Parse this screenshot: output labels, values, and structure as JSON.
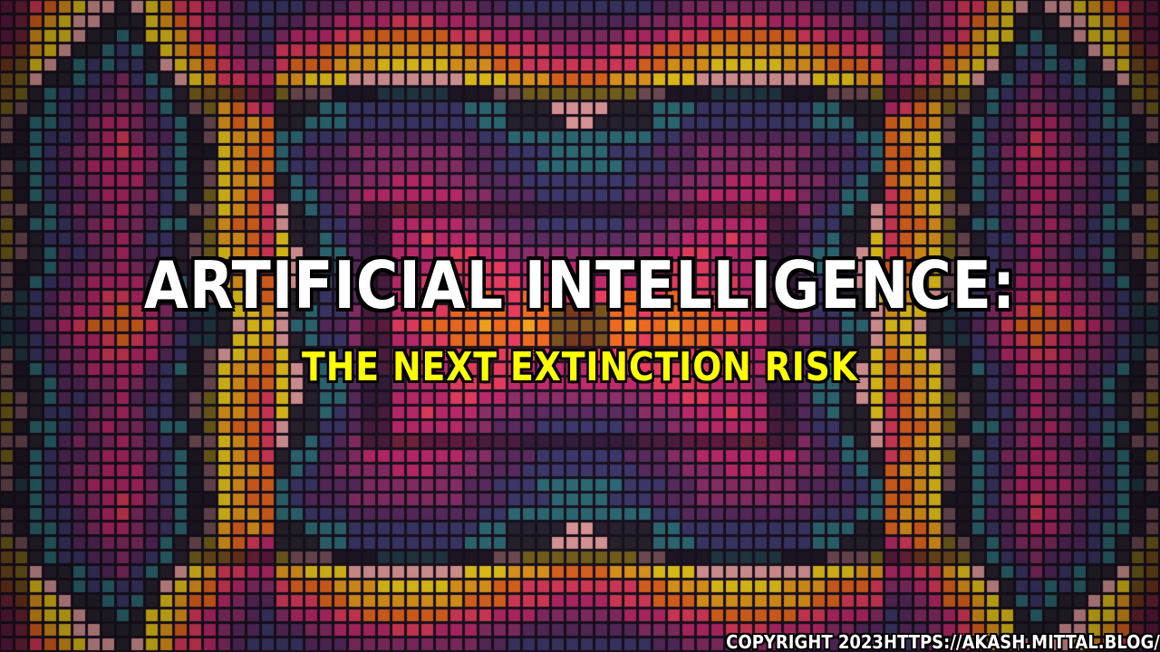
{
  "headline": "ARTIFICIAL INTELLIGENCE:",
  "subheadline": "THE NEXT EXTINCTION RISK",
  "copyright": "COPYRIGHT 2023HTTPS://AKASH.MITTAL.BLOG/",
  "colors": {
    "headline": "#ffffff",
    "subheadline": "#ffff00",
    "outline": "#000000",
    "palette": [
      "#f5d01a",
      "#f2a11c",
      "#ef6a1f",
      "#e83d5f",
      "#c22a6e",
      "#8e2f6b",
      "#5d2c63",
      "#3f3a6e",
      "#2f6f7a",
      "#2a2430",
      "#e9a0a0"
    ]
  }
}
